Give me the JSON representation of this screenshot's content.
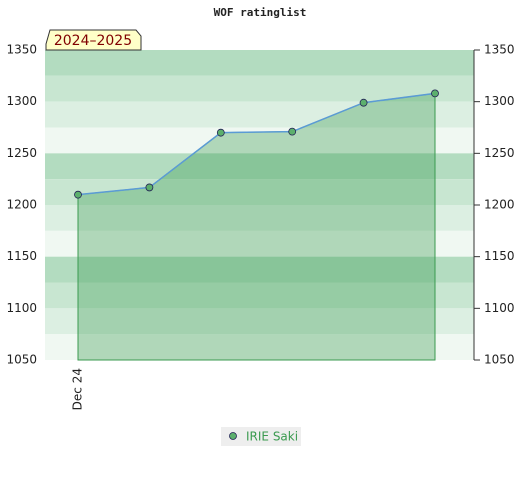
{
  "chart_data": {
    "type": "line",
    "title": "WOF ratinglist",
    "annotation": "2024–2025",
    "categories": [
      "Dec 24",
      null,
      null,
      null,
      null,
      null
    ],
    "series": [
      {
        "name": "IRIE Saki",
        "color": "#3a9a4f",
        "values": [
          1210,
          1217,
          1270,
          1271,
          1299,
          1308
        ]
      }
    ],
    "ylim": [
      1050,
      1350
    ],
    "yticks": [
      1050,
      1100,
      1150,
      1200,
      1250,
      1300,
      1350
    ]
  }
}
